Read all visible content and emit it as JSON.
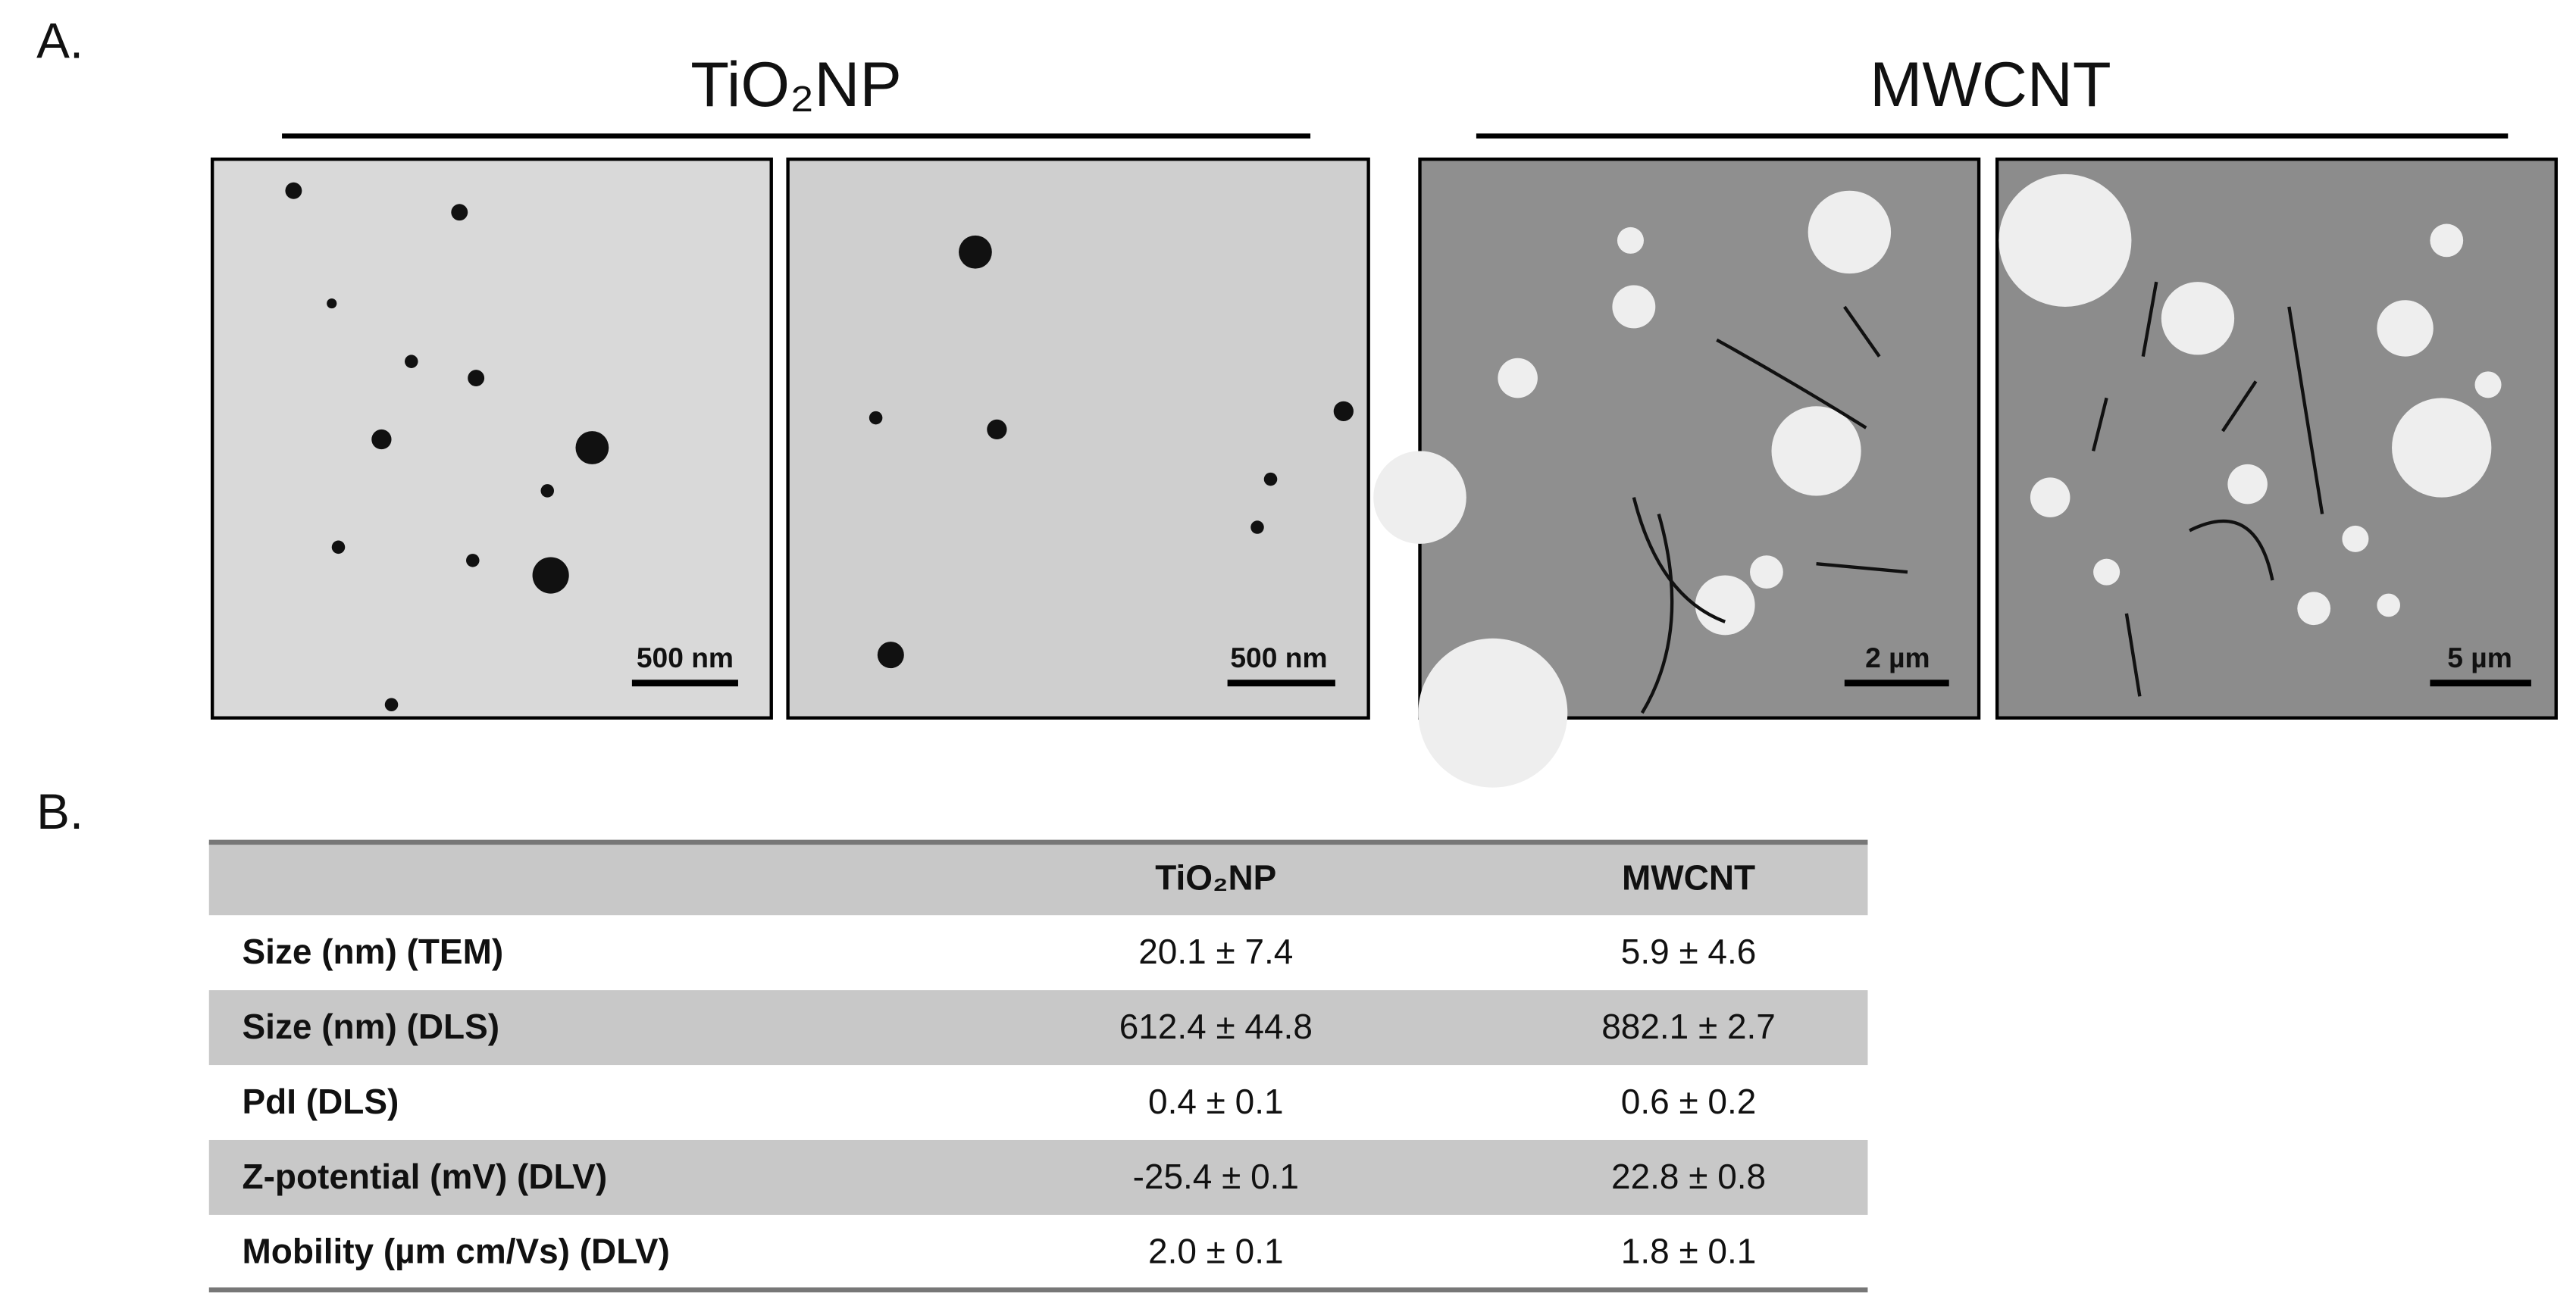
{
  "panel_a": {
    "label": "A.",
    "groups": [
      {
        "title": "TiO₂NP"
      },
      {
        "title": "MWCNT"
      }
    ],
    "scale_bars": [
      "500 nm",
      "500 nm",
      "2 µm",
      "5 µm"
    ]
  },
  "panel_b": {
    "label": "B.",
    "table": {
      "header": [
        "TiO₂NP",
        "MWCNT"
      ],
      "rows": [
        [
          "Size (nm) (TEM)",
          "20.1 ± 7.4",
          "5.9 ± 4.6"
        ],
        [
          "Size (nm) (DLS)",
          "612.4 ± 44.8",
          "882.1 ± 2.7"
        ],
        [
          "PdI (DLS)",
          "0.4 ± 0.1",
          "0.6 ± 0.2"
        ],
        [
          "Z-potential (mV) (DLV)",
          "-25.4 ± 0.1",
          "22.8 ± 0.8"
        ],
        [
          "Mobility (µm cm/Vs) (DLV)",
          "2.0 ± 0.1",
          "1.8 ± 0.1"
        ]
      ]
    }
  }
}
